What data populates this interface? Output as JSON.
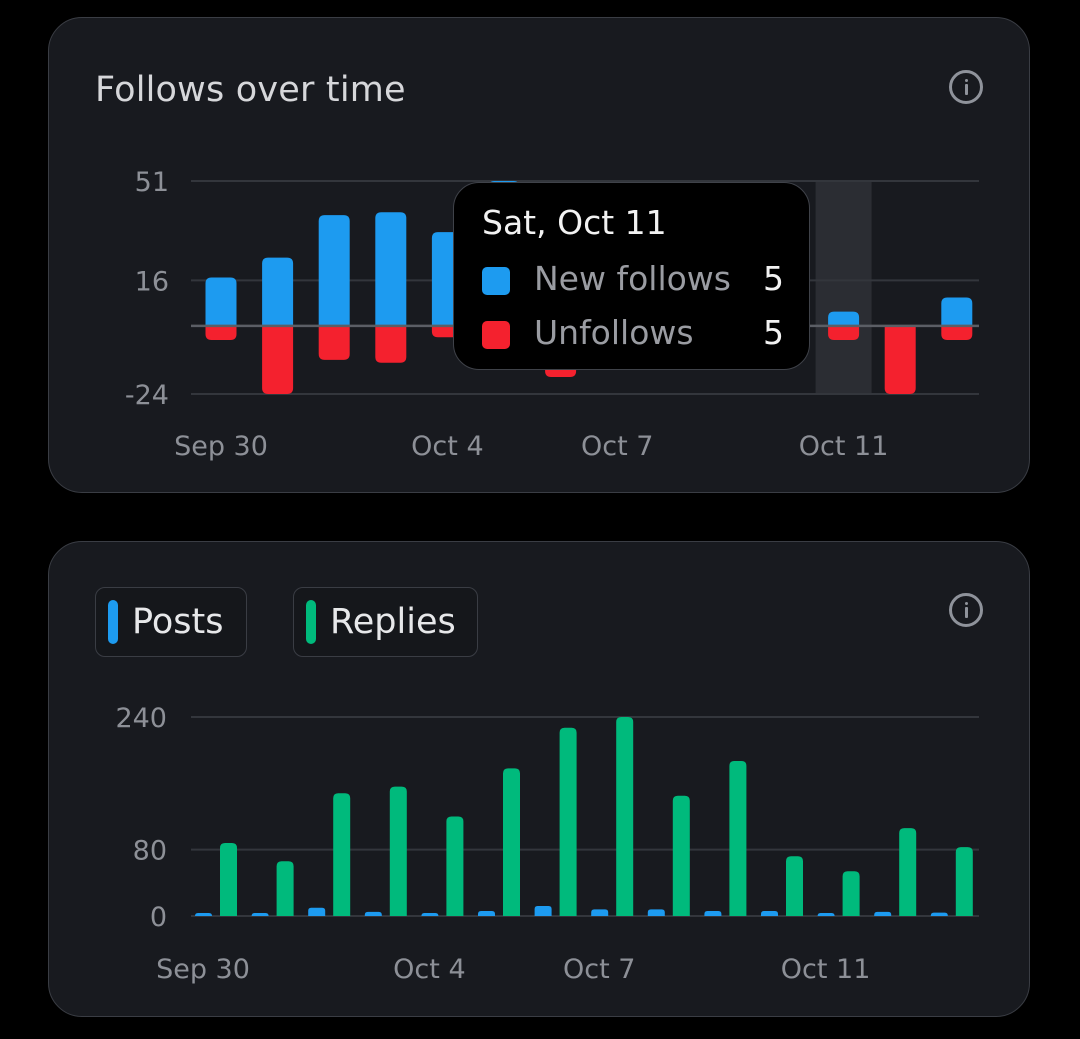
{
  "follows_card": {
    "title": "Follows over time",
    "info_icon": "info-circle-icon",
    "tooltip": {
      "date": "Sat, Oct 11",
      "rows": [
        {
          "label": "New follows",
          "value": "5",
          "color": "#1d9bf0"
        },
        {
          "label": "Unfollows",
          "value": "5",
          "color": "#f4212e"
        }
      ]
    }
  },
  "activity_card": {
    "legend": [
      {
        "label": "Posts",
        "color": "#1d9bf0"
      },
      {
        "label": "Replies",
        "color": "#00ba7c"
      }
    ],
    "info_icon": "info-circle-icon"
  },
  "chart_data": [
    {
      "type": "bar",
      "stacked": "diverging",
      "title": "Follows over time",
      "categories": [
        "Sep 30",
        "Oct 1",
        "Oct 2",
        "Oct 3",
        "Oct 4",
        "Oct 5",
        "Oct 6",
        "Oct 7",
        "Oct 8",
        "Oct 9",
        "Oct 10",
        "Oct 11",
        "Oct 12",
        "Oct 13"
      ],
      "x_tick_labels": [
        "Sep 30",
        "Oct 4",
        "Oct 7",
        "Oct 11"
      ],
      "y_ticks": [
        51,
        16,
        -24
      ],
      "ylim": [
        -24,
        51
      ],
      "series": [
        {
          "name": "New follows",
          "color": "#1d9bf0",
          "values": [
            17,
            24,
            39,
            40,
            33,
            51,
            5,
            5,
            5,
            5,
            5,
            5,
            0,
            10
          ]
        },
        {
          "name": "Unfollows",
          "color": "#f4212e",
          "values": [
            -5,
            -24,
            -12,
            -13,
            -4,
            -5,
            -18,
            -5,
            -5,
            -5,
            -5,
            -5,
            -24,
            -5
          ]
        }
      ],
      "highlighted_category": "Oct 11",
      "grid": true
    },
    {
      "type": "bar",
      "grouped": true,
      "categories": [
        "Sep 30",
        "Oct 1",
        "Oct 2",
        "Oct 3",
        "Oct 4",
        "Oct 5",
        "Oct 6",
        "Oct 7",
        "Oct 8",
        "Oct 9",
        "Oct 10",
        "Oct 11",
        "Oct 12",
        "Oct 13"
      ],
      "x_tick_labels": [
        "Sep 30",
        "Oct 4",
        "Oct 7",
        "Oct 11"
      ],
      "y_ticks": [
        240,
        80,
        0
      ],
      "ylim": [
        0,
        240
      ],
      "series": [
        {
          "name": "Posts",
          "color": "#1d9bf0",
          "values": [
            1,
            2,
            10,
            5,
            1,
            6,
            12,
            8,
            8,
            6,
            6,
            3,
            5,
            4
          ]
        },
        {
          "name": "Replies",
          "color": "#00ba7c",
          "values": [
            88,
            66,
            148,
            156,
            120,
            178,
            227,
            240,
            145,
            187,
            72,
            54,
            106,
            83
          ]
        }
      ],
      "grid": true
    }
  ]
}
